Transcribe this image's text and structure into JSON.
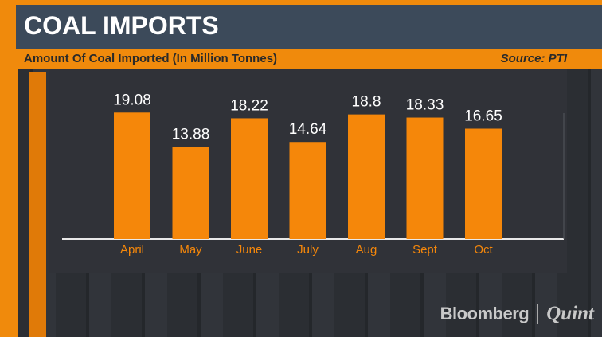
{
  "header": {
    "title": "COAL IMPORTS",
    "subtitle": "Amount Of Coal Imported (In Million Tonnes)",
    "source": "Source: PTI"
  },
  "branding": {
    "name": "Bloomberg",
    "partner": "Quint"
  },
  "colors": {
    "bar": "#f5870a",
    "accent": "#f08a0c",
    "title_bar": "#3c4a5a",
    "value_label": "#ffffff",
    "tick_label": "#f5870a"
  },
  "chart_data": {
    "type": "bar",
    "categories": [
      "April",
      "May",
      "June",
      "July",
      "Aug",
      "Sept",
      "Oct"
    ],
    "values": [
      19.08,
      13.88,
      18.22,
      14.64,
      18.8,
      18.33,
      16.65
    ],
    "data_labels": [
      "19.08",
      "13.88",
      "18.22",
      "14.64",
      "18.8",
      "18.33",
      "16.65"
    ],
    "title": "",
    "xlabel": "",
    "ylabel": "",
    "ylim": [
      0,
      22
    ],
    "grid": false,
    "legend": "none"
  }
}
